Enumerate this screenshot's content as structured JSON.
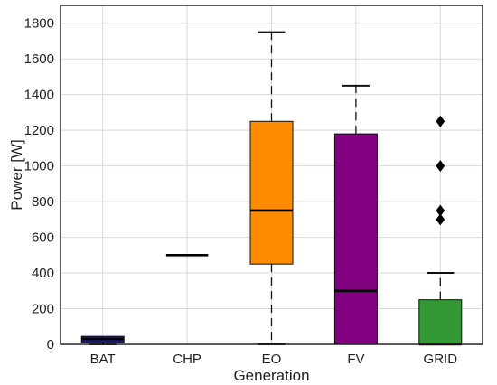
{
  "chart_data": {
    "type": "box",
    "xlabel": "Generation",
    "ylabel": "Power [W]",
    "ylim": [
      0,
      1900
    ],
    "yticks": [
      0,
      200,
      400,
      600,
      800,
      1000,
      1200,
      1400,
      1600,
      1800
    ],
    "ytick_labels": [
      "0",
      "200",
      "400",
      "600",
      "800",
      "1000",
      "1200",
      "1400",
      "1600",
      "1800"
    ],
    "grid": true,
    "categories": [
      "BAT",
      "CHP",
      "EO",
      "FV",
      "GRID"
    ],
    "boxes": [
      {
        "category": "BAT",
        "color": "#1a1a8c",
        "whisker_low": 0,
        "q1": 10,
        "median": 30,
        "q3": 45,
        "whisker_high": 45,
        "outliers": []
      },
      {
        "category": "CHP",
        "color": "#000000",
        "whisker_low": 500,
        "q1": 500,
        "median": 500,
        "q3": 500,
        "whisker_high": 500,
        "outliers": []
      },
      {
        "category": "EO",
        "color": "#ff8c00",
        "whisker_low": 0,
        "q1": 450,
        "median": 750,
        "q3": 1250,
        "whisker_high": 1750,
        "outliers": []
      },
      {
        "category": "FV",
        "color": "#800080",
        "whisker_low": 0,
        "q1": 0,
        "median": 300,
        "q3": 1180,
        "whisker_high": 1450,
        "outliers": []
      },
      {
        "category": "GRID",
        "color": "#339933",
        "whisker_low": 0,
        "q1": 0,
        "median": 0,
        "q3": 250,
        "whisker_high": 400,
        "outliers": [
          700,
          750,
          1000,
          1250
        ]
      }
    ]
  }
}
